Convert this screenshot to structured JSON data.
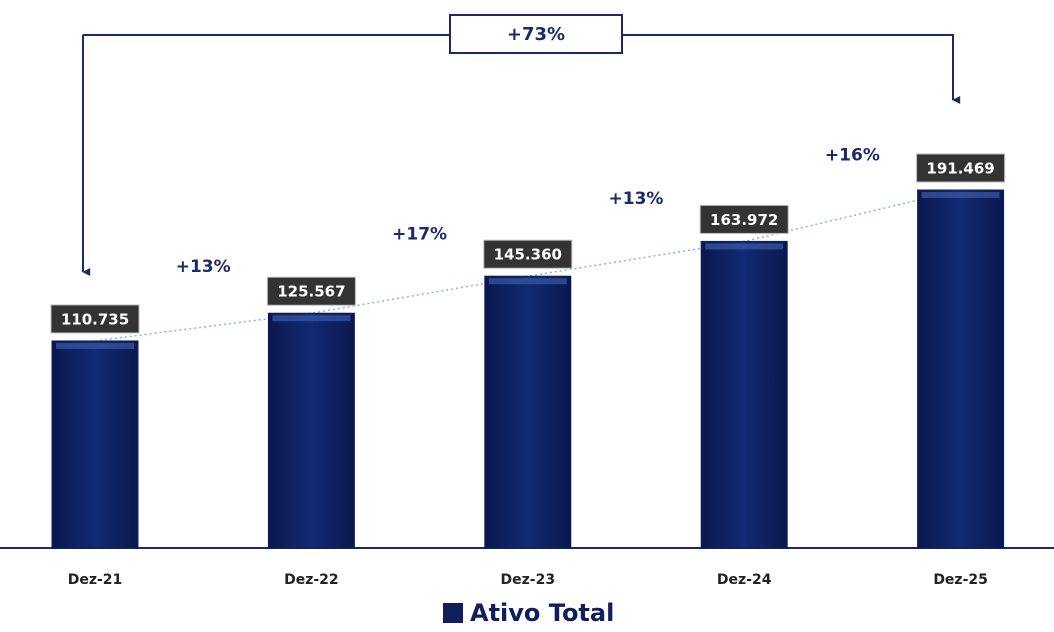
{
  "chart_data": {
    "type": "bar",
    "categories": [
      "Dez-21",
      "Dez-22",
      "Dez-23",
      "Dez-24",
      "Dez-25"
    ],
    "series": [
      {
        "name": "Ativo Total",
        "color": "#0d1f5c",
        "values": [
          110735,
          125567,
          145360,
          163972,
          191469
        ],
        "value_labels": [
          "110.735",
          "125.567",
          "145.360",
          "163.972",
          "191.469"
        ]
      }
    ],
    "growth_labels": [
      "+13%",
      "+17%",
      "+13%",
      "+16%"
    ],
    "total_growth_label": "+73%"
  }
}
